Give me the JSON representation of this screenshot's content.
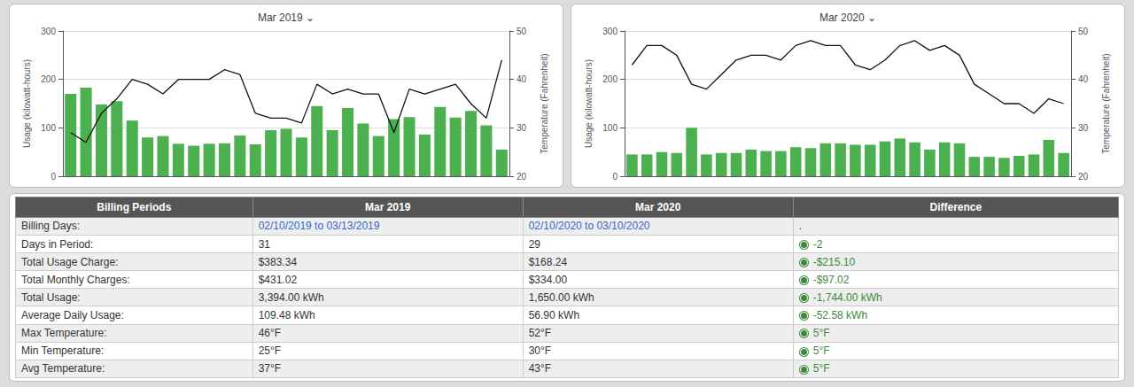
{
  "chart_data": [
    {
      "type": "bar",
      "title": "Mar 2019 ⌄",
      "categories": [
        null,
        null,
        null,
        null,
        null,
        null,
        null,
        null,
        null,
        null,
        null,
        null,
        null,
        null,
        null,
        null,
        null,
        null,
        null,
        null,
        null,
        null,
        null,
        null,
        null,
        null,
        null,
        null,
        null
      ],
      "series": [
        {
          "type": "bar",
          "color": "#4CAF50",
          "values": [
            170,
            183,
            148,
            155,
            115,
            80,
            83,
            67,
            63,
            67,
            68,
            84,
            66,
            95,
            98,
            80,
            145,
            95,
            141,
            109,
            83,
            118,
            122,
            86,
            143,
            121,
            135,
            105,
            55
          ]
        },
        {
          "type": "line",
          "color": "#111111",
          "axis": "y2",
          "values": [
            29,
            27,
            33,
            36,
            40,
            39,
            37,
            40,
            40,
            40,
            42,
            41,
            33,
            32,
            32,
            31,
            39,
            37,
            38,
            37,
            37,
            29,
            38,
            37,
            38,
            39,
            35,
            32,
            44
          ]
        }
      ],
      "ylabel": "Usage (kilowatt-hours)",
      "y2label": "Temperature (Fahrenheit)",
      "ylim": [
        0,
        300
      ],
      "yticks": [
        0,
        100,
        200,
        300
      ],
      "y2lim": [
        20,
        50
      ],
      "y2ticks": [
        20,
        30,
        40,
        50
      ],
      "grid": true,
      "tick_labels": "y"
    },
    {
      "type": "bar",
      "title": "Mar 2020 ⌄",
      "categories": [
        null,
        null,
        null,
        null,
        null,
        null,
        null,
        null,
        null,
        null,
        null,
        null,
        null,
        null,
        null,
        null,
        null,
        null,
        null,
        null,
        null,
        null,
        null,
        null,
        null,
        null,
        null,
        null,
        null,
        null
      ],
      "series": [
        {
          "type": "bar",
          "color": "#4CAF50",
          "values": [
            45,
            45,
            50,
            48,
            100,
            45,
            48,
            48,
            55,
            52,
            52,
            60,
            58,
            68,
            68,
            65,
            65,
            72,
            78,
            70,
            55,
            70,
            68,
            40,
            40,
            38,
            42,
            45,
            75,
            48
          ]
        },
        {
          "type": "line",
          "color": "#111111",
          "axis": "y2",
          "values": [
            43,
            47,
            47,
            45,
            39,
            38,
            41,
            44,
            45,
            45,
            44,
            47,
            48,
            47,
            47,
            43,
            42,
            44,
            47,
            48,
            46,
            47,
            45,
            39,
            37,
            35,
            35,
            33,
            36,
            35
          ]
        }
      ],
      "ylabel": "Usage (kilowatt-hours)",
      "y2label": "Temperature (Fahrenheit)",
      "ylim": [
        0,
        300
      ],
      "yticks": [
        0,
        100,
        200,
        300
      ],
      "y2lim": [
        20,
        50
      ],
      "y2ticks": [
        20,
        30,
        40,
        50
      ],
      "grid": true,
      "tick_labels": "y"
    },
    {
      "type": "table",
      "columns": [
        "Billing Periods",
        "Mar 2019",
        "Mar 2020",
        "Difference"
      ],
      "rows": [
        [
          "Billing Days:",
          "02/10/2019 to 03/13/2019",
          "02/10/2020 to 03/10/2020",
          "."
        ],
        [
          "Days in Period:",
          "31",
          "29",
          "-2"
        ],
        [
          "Total Usage Charge:",
          "$383.34",
          "$168.24",
          "-$215.10"
        ],
        [
          "Total Monthly Charges:",
          "$431.02",
          "$334.00",
          "-$97.02"
        ],
        [
          "Total Usage:",
          "3,394.00 kWh",
          "1,650.00 kWh",
          "-1,744.00 kWh"
        ],
        [
          "Average Daily Usage:",
          "109.48 kWh",
          "56.90 kWh",
          "-52.58 kWh"
        ],
        [
          "Max Temperature:",
          "46°F",
          "52°F",
          "5°F"
        ],
        [
          "Min Temperature:",
          "25°F",
          "30°F",
          "5°F"
        ],
        [
          "Avg Temperature:",
          "37°F",
          "43°F",
          "5°F"
        ]
      ]
    }
  ]
}
